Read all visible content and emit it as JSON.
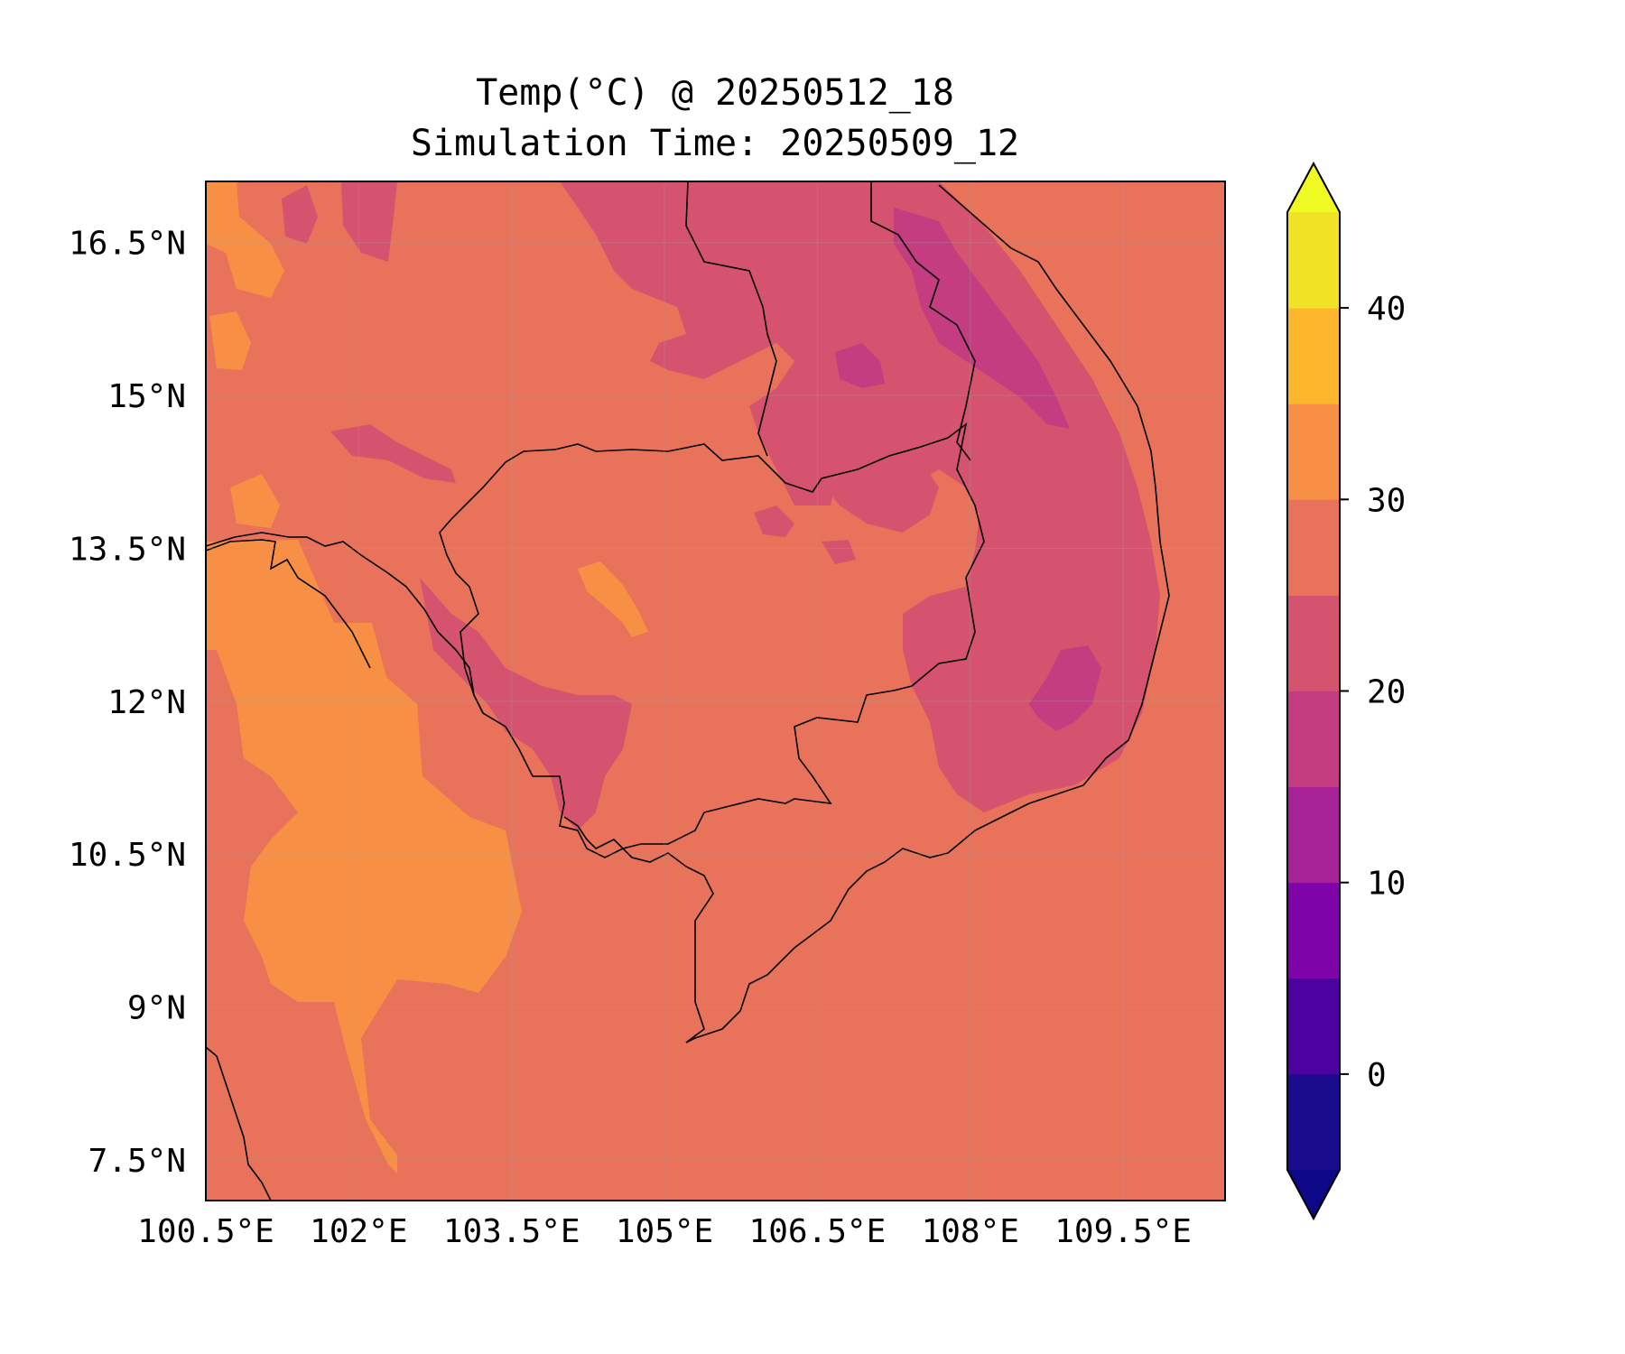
{
  "title": {
    "line1": "Temp(°C) @ 20250512_18",
    "line2": "Simulation Time: 20250509_12"
  },
  "map": {
    "region": "Cambodia and surrounding Indochina region",
    "lon_ticks": [
      "100.5°E",
      "102°E",
      "103.5°E",
      "105°E",
      "106.5°E",
      "108°E",
      "109.5°E"
    ],
    "lat_ticks": [
      "16.5°N",
      "15°N",
      "13.5°N",
      "12°N",
      "10.5°N",
      "9°N",
      "7.5°N"
    ],
    "extent": {
      "lon": [
        100.5,
        110.5
      ],
      "lat": [
        7.1,
        17.1
      ]
    },
    "background_color": "#e8735a",
    "grid": true
  },
  "colorbar": {
    "tick_labels": [
      "40",
      "30",
      "20",
      "10",
      "0"
    ],
    "levels": [
      -5,
      0,
      5,
      10,
      15,
      20,
      25,
      30,
      35,
      40,
      45
    ],
    "extend": "both",
    "colormap": "plasma",
    "colors": [
      "#1a0c8c",
      "#4c02a1",
      "#7e03a8",
      "#a72197",
      "#c33d80",
      "#d5536f",
      "#e8735a",
      "#f79044",
      "#feb72d",
      "#f1e225"
    ],
    "under_color": "#0d0887",
    "over_color": "#f0f921"
  }
}
